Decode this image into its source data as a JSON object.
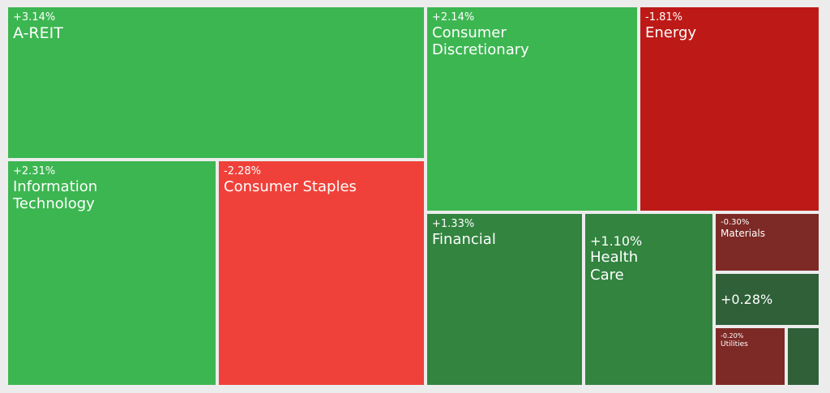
{
  "chart_data": {
    "type": "treemap",
    "colors": {
      "strong_positive": "#3cb651",
      "moderate_positive": "#32843f",
      "weak_positive": "#2f6038",
      "strong_negative": "#ef4139",
      "moderate_negative": "#bd1a17",
      "weak_negative": "#7d2925"
    },
    "tiles": [
      {
        "name": "A-REIT",
        "change": "+3.14%",
        "color": "#3cb651"
      },
      {
        "name": "Information Technology",
        "change": "+2.31%",
        "color": "#3cb651"
      },
      {
        "name": "Consumer Staples",
        "change": "-2.28%",
        "color": "#ef4139"
      },
      {
        "name": "Consumer Discretionary",
        "change": "+2.14%",
        "color": "#3cb651"
      },
      {
        "name": "Energy",
        "change": "-1.81%",
        "color": "#bd1a17"
      },
      {
        "name": "Financial",
        "change": "+1.33%",
        "color": "#32843f"
      },
      {
        "name": "Health Care",
        "change": "+1.10%",
        "color": "#32843f"
      },
      {
        "name": "Materials",
        "change": "-0.30%",
        "color": "#7d2925"
      },
      {
        "name": "",
        "change": "+0.28%",
        "color": "#2f6038"
      },
      {
        "name": "Utilities",
        "change": "-0.20%",
        "color": "#7d2925"
      },
      {
        "name": "",
        "change": "",
        "color": "#2f6038"
      }
    ]
  }
}
